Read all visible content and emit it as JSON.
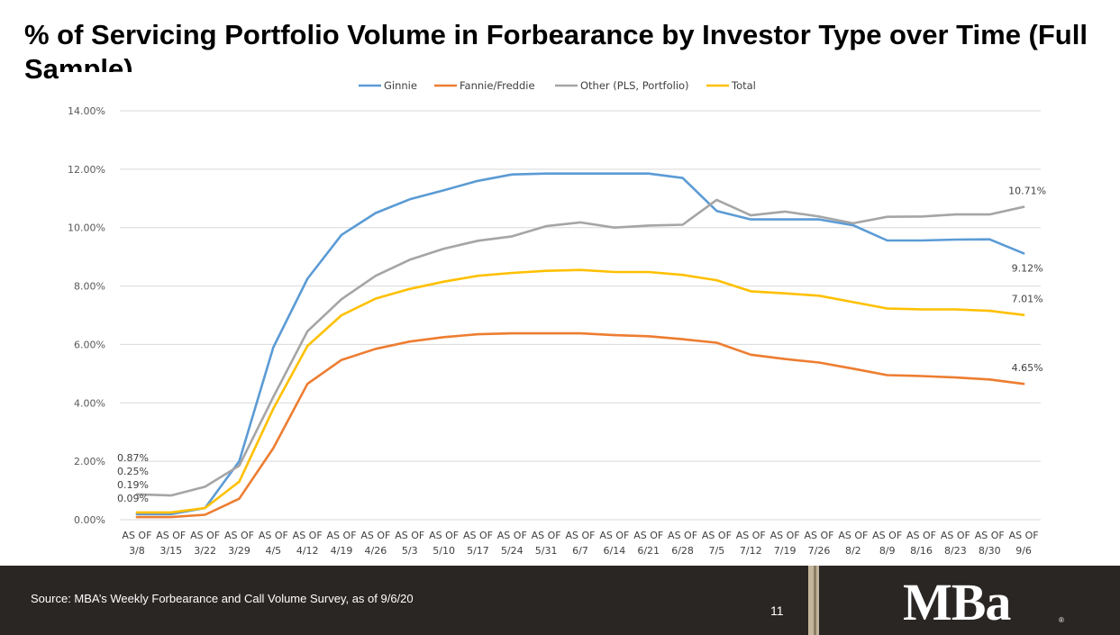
{
  "slide": {
    "title": "% of Servicing Portfolio Volume in Forbearance by Investor Type over Time (Full Sample)",
    "source": "Source: MBA’s Weekly Forbearance and Call Volume Survey, as of 9/6/20",
    "page_number": "11",
    "logo_text": "MBa",
    "logo_mark": "®"
  },
  "chart_data": {
    "type": "line",
    "title": "% of Servicing Portfolio Volume in Forbearance by Investor Type over Time (Full Sample)",
    "xlabel": "",
    "ylabel": "",
    "ylim": [
      0,
      14
    ],
    "yticks": [
      0,
      2,
      4,
      6,
      8,
      10,
      12,
      14
    ],
    "ytick_labels": [
      "0.00%",
      "2.00%",
      "4.00%",
      "6.00%",
      "8.00%",
      "10.00%",
      "12.00%",
      "14.00%"
    ],
    "grid": true,
    "legend_position": "top-center",
    "categories": [
      [
        "AS OF",
        "3/8"
      ],
      [
        "AS OF",
        "3/15"
      ],
      [
        "AS OF",
        "3/22"
      ],
      [
        "AS OF",
        "3/29"
      ],
      [
        "AS OF",
        "4/5"
      ],
      [
        "AS OF",
        "4/12"
      ],
      [
        "AS OF",
        "4/19"
      ],
      [
        "AS OF",
        "4/26"
      ],
      [
        "AS OF",
        "5/3"
      ],
      [
        "AS OF",
        "5/10"
      ],
      [
        "AS OF",
        "5/17"
      ],
      [
        "AS OF",
        "5/24"
      ],
      [
        "AS OF",
        "5/31"
      ],
      [
        "AS OF",
        "6/7"
      ],
      [
        "AS OF",
        "6/14"
      ],
      [
        "AS OF",
        "6/21"
      ],
      [
        "AS OF",
        "6/28"
      ],
      [
        "AS OF",
        "7/5"
      ],
      [
        "AS OF",
        "7/12"
      ],
      [
        "AS OF",
        "7/19"
      ],
      [
        "AS OF",
        "7/26"
      ],
      [
        "AS OF",
        "8/2"
      ],
      [
        "AS OF",
        "8/9"
      ],
      [
        "AS OF",
        "8/16"
      ],
      [
        "AS OF",
        "8/23"
      ],
      [
        "AS OF",
        "8/30"
      ],
      [
        "AS OF",
        "9/6"
      ]
    ],
    "series": [
      {
        "name": "Ginnie",
        "color": "#5b9bd5",
        "values": [
          0.19,
          0.19,
          0.4,
          2.0,
          5.9,
          8.25,
          9.75,
          10.5,
          10.97,
          11.28,
          11.6,
          11.82,
          11.85,
          11.85,
          11.85,
          11.85,
          11.7,
          10.57,
          10.28,
          10.28,
          10.28,
          10.08,
          9.56,
          9.56,
          9.59,
          9.6,
          9.12
        ],
        "end_label": "9.12%"
      },
      {
        "name": "Fannie/Freddie",
        "color": "#ed7d31",
        "values": [
          0.09,
          0.09,
          0.17,
          0.72,
          2.45,
          4.65,
          5.47,
          5.85,
          6.1,
          6.25,
          6.35,
          6.38,
          6.38,
          6.38,
          6.32,
          6.28,
          6.18,
          6.06,
          5.65,
          5.5,
          5.38,
          5.17,
          4.95,
          4.92,
          4.87,
          4.8,
          4.65
        ],
        "end_label": "4.65%"
      },
      {
        "name": "Other (PLS, Portfolio)",
        "color": "#a5a5a5",
        "values": [
          0.87,
          0.83,
          1.13,
          1.85,
          4.2,
          6.45,
          7.55,
          8.35,
          8.9,
          9.28,
          9.55,
          9.7,
          10.05,
          10.18,
          10.0,
          10.07,
          10.1,
          10.95,
          10.42,
          10.55,
          10.38,
          10.15,
          10.37,
          10.38,
          10.45,
          10.45,
          10.71
        ],
        "end_label": "10.71%"
      },
      {
        "name": "Total",
        "color": "#ffc000",
        "values": [
          0.25,
          0.25,
          0.4,
          1.3,
          3.8,
          5.95,
          7.0,
          7.57,
          7.9,
          8.15,
          8.35,
          8.45,
          8.52,
          8.55,
          8.48,
          8.48,
          8.38,
          8.2,
          7.82,
          7.75,
          7.67,
          7.45,
          7.23,
          7.2,
          7.2,
          7.15,
          7.01
        ],
        "end_label": "7.01%"
      }
    ],
    "start_labels": [
      "0.87%",
      "0.25%",
      "0.19%",
      "0.09%"
    ]
  }
}
